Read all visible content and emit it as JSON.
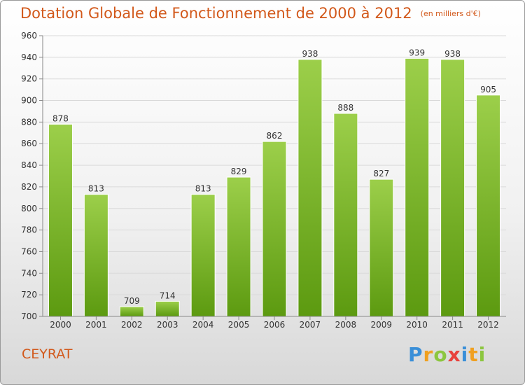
{
  "header": {
    "title": "Dotation Globale de Fonctionnement de 2000 à 2012",
    "subtitle": "(en milliers d'€)"
  },
  "footer": {
    "commune": "CEYRAT",
    "logo_letters": [
      {
        "char": "P",
        "color": "#3a8fd8"
      },
      {
        "char": "r",
        "color": "#f0a020"
      },
      {
        "char": "o",
        "color": "#8cc63f"
      },
      {
        "char": "x",
        "color": "#e8413c"
      },
      {
        "char": "i",
        "color": "#3a8fd8"
      },
      {
        "char": "t",
        "color": "#f0a020"
      },
      {
        "char": "i",
        "color": "#8cc63f"
      }
    ]
  },
  "colors": {
    "title": "#d2581a",
    "bar_top": "#9ccf4a",
    "bar_bottom": "#5c9a10",
    "grid": "#d9d9d9"
  },
  "chart_data": {
    "type": "bar",
    "title": "Dotation Globale de Fonctionnement de 2000 à 2012",
    "subtitle": "(en milliers d'€)",
    "xlabel": "",
    "ylabel": "",
    "categories": [
      "2000",
      "2001",
      "2002",
      "2003",
      "2004",
      "2005",
      "2006",
      "2007",
      "2008",
      "2009",
      "2010",
      "2011",
      "2012"
    ],
    "values": [
      878,
      813,
      709,
      714,
      813,
      829,
      862,
      938,
      888,
      827,
      939,
      938,
      905
    ],
    "ylim": [
      700,
      960
    ],
    "yticks": [
      700,
      720,
      740,
      760,
      780,
      800,
      820,
      840,
      860,
      880,
      900,
      920,
      940,
      960
    ],
    "grid": "horizontal",
    "legend": "none"
  }
}
